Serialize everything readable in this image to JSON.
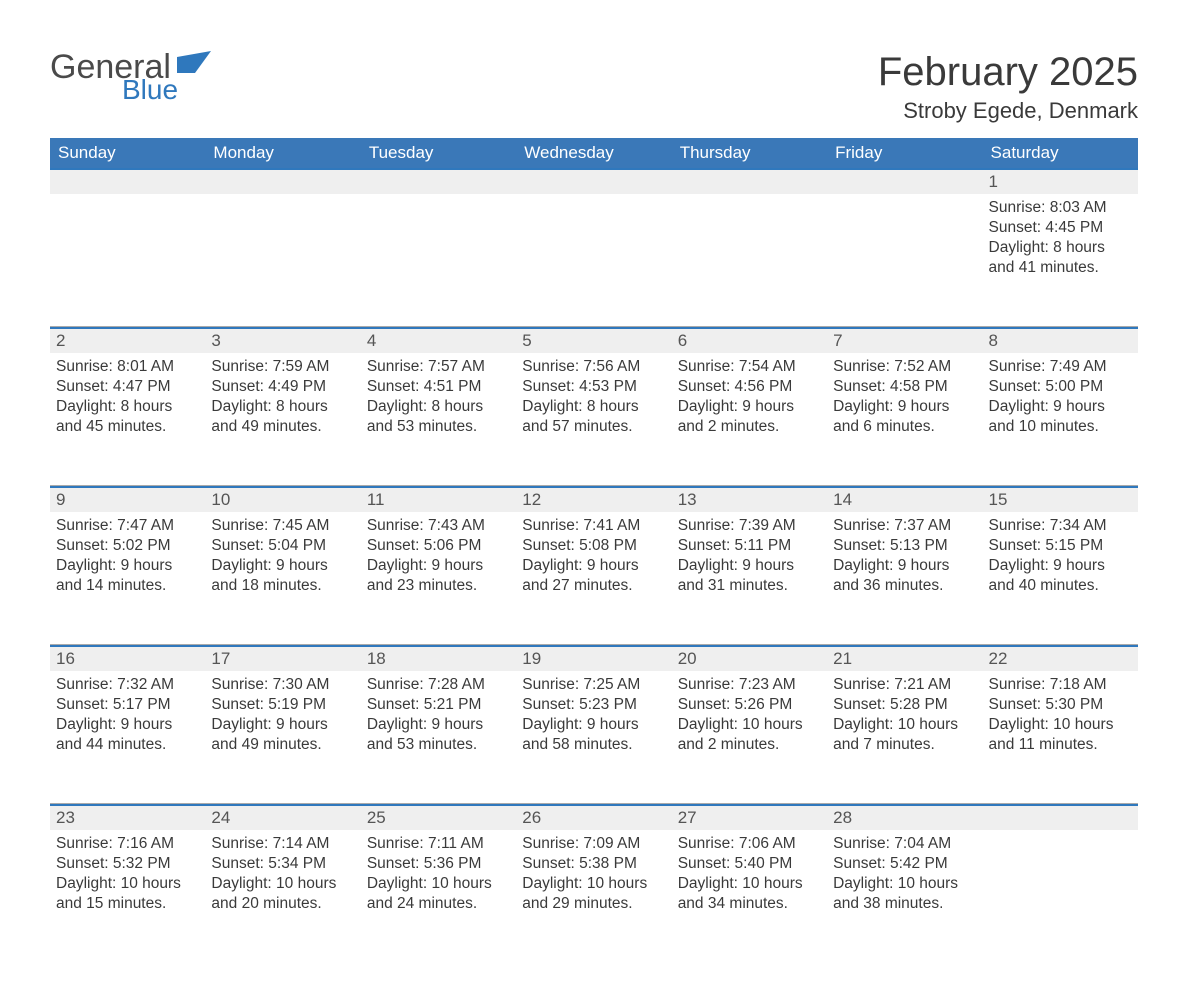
{
  "logo": {
    "word1": "General",
    "word2": "Blue"
  },
  "title": "February 2025",
  "location": "Stroby Egede, Denmark",
  "colors": {
    "header_bg": "#3a78b8",
    "header_text": "#ffffff",
    "accent": "#2f78bd",
    "daynum_bg": "#efefef",
    "text": "#3a3a3a"
  },
  "days_of_week": [
    "Sunday",
    "Monday",
    "Tuesday",
    "Wednesday",
    "Thursday",
    "Friday",
    "Saturday"
  ],
  "weeks": [
    [
      null,
      null,
      null,
      null,
      null,
      null,
      {
        "n": "1",
        "sunrise": "Sunrise: 8:03 AM",
        "sunset": "Sunset: 4:45 PM",
        "day": "Daylight: 8 hours and 41 minutes."
      }
    ],
    [
      {
        "n": "2",
        "sunrise": "Sunrise: 8:01 AM",
        "sunset": "Sunset: 4:47 PM",
        "day": "Daylight: 8 hours and 45 minutes."
      },
      {
        "n": "3",
        "sunrise": "Sunrise: 7:59 AM",
        "sunset": "Sunset: 4:49 PM",
        "day": "Daylight: 8 hours and 49 minutes."
      },
      {
        "n": "4",
        "sunrise": "Sunrise: 7:57 AM",
        "sunset": "Sunset: 4:51 PM",
        "day": "Daylight: 8 hours and 53 minutes."
      },
      {
        "n": "5",
        "sunrise": "Sunrise: 7:56 AM",
        "sunset": "Sunset: 4:53 PM",
        "day": "Daylight: 8 hours and 57 minutes."
      },
      {
        "n": "6",
        "sunrise": "Sunrise: 7:54 AM",
        "sunset": "Sunset: 4:56 PM",
        "day": "Daylight: 9 hours and 2 minutes."
      },
      {
        "n": "7",
        "sunrise": "Sunrise: 7:52 AM",
        "sunset": "Sunset: 4:58 PM",
        "day": "Daylight: 9 hours and 6 minutes."
      },
      {
        "n": "8",
        "sunrise": "Sunrise: 7:49 AM",
        "sunset": "Sunset: 5:00 PM",
        "day": "Daylight: 9 hours and 10 minutes."
      }
    ],
    [
      {
        "n": "9",
        "sunrise": "Sunrise: 7:47 AM",
        "sunset": "Sunset: 5:02 PM",
        "day": "Daylight: 9 hours and 14 minutes."
      },
      {
        "n": "10",
        "sunrise": "Sunrise: 7:45 AM",
        "sunset": "Sunset: 5:04 PM",
        "day": "Daylight: 9 hours and 18 minutes."
      },
      {
        "n": "11",
        "sunrise": "Sunrise: 7:43 AM",
        "sunset": "Sunset: 5:06 PM",
        "day": "Daylight: 9 hours and 23 minutes."
      },
      {
        "n": "12",
        "sunrise": "Sunrise: 7:41 AM",
        "sunset": "Sunset: 5:08 PM",
        "day": "Daylight: 9 hours and 27 minutes."
      },
      {
        "n": "13",
        "sunrise": "Sunrise: 7:39 AM",
        "sunset": "Sunset: 5:11 PM",
        "day": "Daylight: 9 hours and 31 minutes."
      },
      {
        "n": "14",
        "sunrise": "Sunrise: 7:37 AM",
        "sunset": "Sunset: 5:13 PM",
        "day": "Daylight: 9 hours and 36 minutes."
      },
      {
        "n": "15",
        "sunrise": "Sunrise: 7:34 AM",
        "sunset": "Sunset: 5:15 PM",
        "day": "Daylight: 9 hours and 40 minutes."
      }
    ],
    [
      {
        "n": "16",
        "sunrise": "Sunrise: 7:32 AM",
        "sunset": "Sunset: 5:17 PM",
        "day": "Daylight: 9 hours and 44 minutes."
      },
      {
        "n": "17",
        "sunrise": "Sunrise: 7:30 AM",
        "sunset": "Sunset: 5:19 PM",
        "day": "Daylight: 9 hours and 49 minutes."
      },
      {
        "n": "18",
        "sunrise": "Sunrise: 7:28 AM",
        "sunset": "Sunset: 5:21 PM",
        "day": "Daylight: 9 hours and 53 minutes."
      },
      {
        "n": "19",
        "sunrise": "Sunrise: 7:25 AM",
        "sunset": "Sunset: 5:23 PM",
        "day": "Daylight: 9 hours and 58 minutes."
      },
      {
        "n": "20",
        "sunrise": "Sunrise: 7:23 AM",
        "sunset": "Sunset: 5:26 PM",
        "day": "Daylight: 10 hours and 2 minutes."
      },
      {
        "n": "21",
        "sunrise": "Sunrise: 7:21 AM",
        "sunset": "Sunset: 5:28 PM",
        "day": "Daylight: 10 hours and 7 minutes."
      },
      {
        "n": "22",
        "sunrise": "Sunrise: 7:18 AM",
        "sunset": "Sunset: 5:30 PM",
        "day": "Daylight: 10 hours and 11 minutes."
      }
    ],
    [
      {
        "n": "23",
        "sunrise": "Sunrise: 7:16 AM",
        "sunset": "Sunset: 5:32 PM",
        "day": "Daylight: 10 hours and 15 minutes."
      },
      {
        "n": "24",
        "sunrise": "Sunrise: 7:14 AM",
        "sunset": "Sunset: 5:34 PM",
        "day": "Daylight: 10 hours and 20 minutes."
      },
      {
        "n": "25",
        "sunrise": "Sunrise: 7:11 AM",
        "sunset": "Sunset: 5:36 PM",
        "day": "Daylight: 10 hours and 24 minutes."
      },
      {
        "n": "26",
        "sunrise": "Sunrise: 7:09 AM",
        "sunset": "Sunset: 5:38 PM",
        "day": "Daylight: 10 hours and 29 minutes."
      },
      {
        "n": "27",
        "sunrise": "Sunrise: 7:06 AM",
        "sunset": "Sunset: 5:40 PM",
        "day": "Daylight: 10 hours and 34 minutes."
      },
      {
        "n": "28",
        "sunrise": "Sunrise: 7:04 AM",
        "sunset": "Sunset: 5:42 PM",
        "day": "Daylight: 10 hours and 38 minutes."
      },
      null
    ]
  ]
}
